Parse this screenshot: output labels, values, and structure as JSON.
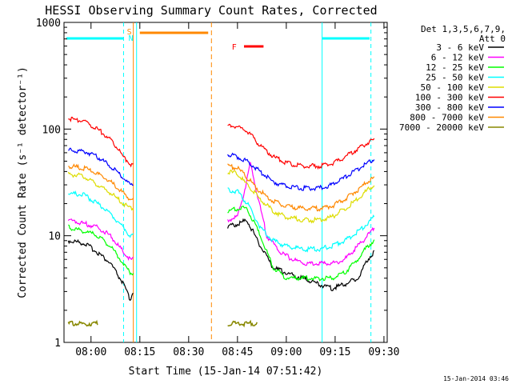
{
  "chart_data": {
    "type": "line",
    "title": "HESSI Observing Summary Count Rates, Corrected",
    "xlabel": "Start Time (15-Jan-14 07:51:42)",
    "ylabel": "Corrected Count Rate (s⁻¹ detector⁻¹)",
    "xlim": [
      "07:51:42",
      "09:31:00"
    ],
    "ylim": [
      1,
      1000
    ],
    "y_scale": "log",
    "x_tick_labels": [
      "08:00",
      "08:15",
      "08:30",
      "08:45",
      "09:00",
      "09:15",
      "09:30"
    ],
    "y_tick_labels": [
      "1",
      "10",
      "100",
      "1000"
    ],
    "legend_header": [
      "Det 1,3,5,6,7,9,",
      "Att 0"
    ],
    "legend_position": "right",
    "series": [
      {
        "name": "3 - 6 keV",
        "color": "#000000",
        "x": [
          "07:53",
          "07:58",
          "08:02",
          "08:06",
          "08:10",
          "08:12",
          "08:13"
        ],
        "y": [
          9,
          8.5,
          7,
          5.5,
          3.5,
          2.5,
          3
        ],
        "x2": [
          "08:42",
          "08:45",
          "08:48",
          "08:52",
          "08:56",
          "09:00",
          "09:05",
          "09:10",
          "09:14",
          "09:18",
          "09:22",
          "09:25",
          "09:27"
        ],
        "y2": [
          12,
          13,
          14,
          8,
          5,
          4.5,
          4,
          3.5,
          3.2,
          3.5,
          4,
          6,
          7
        ]
      },
      {
        "name": "6 - 12 keV",
        "color": "#ff00ff",
        "x": [
          "07:53",
          "07:58",
          "08:02",
          "08:06",
          "08:10",
          "08:12",
          "08:13"
        ],
        "y": [
          14,
          13,
          12,
          10,
          7,
          6,
          6
        ],
        "x2": [
          "08:42",
          "08:45",
          "08:47",
          "08:49",
          "08:51",
          "08:54",
          "08:58",
          "09:02",
          "09:06",
          "09:10",
          "09:14",
          "09:18",
          "09:22",
          "09:25",
          "09:27"
        ],
        "y2": [
          14,
          15,
          25,
          48,
          25,
          10,
          7,
          6,
          5.5,
          5.5,
          5.5,
          6,
          8,
          10,
          12
        ]
      },
      {
        "name": "12 - 25 keV",
        "color": "#00ff00",
        "x": [
          "07:53",
          "07:58",
          "08:02",
          "08:06",
          "08:10",
          "08:12",
          "08:13"
        ],
        "y": [
          12,
          11,
          10,
          8,
          5.5,
          4.5,
          4.5
        ],
        "x2": [
          "08:42",
          "08:45",
          "08:48",
          "08:52",
          "08:56",
          "09:00",
          "09:05",
          "09:10",
          "09:14",
          "09:18",
          "09:22",
          "09:25",
          "09:27"
        ],
        "y2": [
          17,
          18,
          18,
          10,
          5,
          4,
          4,
          4,
          4,
          4.5,
          6,
          8,
          9
        ]
      },
      {
        "name": "25 - 50 keV",
        "color": "#00ffff",
        "x": [
          "07:53",
          "07:58",
          "08:02",
          "08:06",
          "08:10",
          "08:12",
          "08:13"
        ],
        "y": [
          25,
          24,
          20,
          16,
          12,
          10,
          10
        ],
        "x2": [
          "08:42",
          "08:45",
          "08:48",
          "08:52",
          "08:56",
          "09:00",
          "09:05",
          "09:10",
          "09:14",
          "09:18",
          "09:22",
          "09:25",
          "09:27"
        ],
        "y2": [
          27,
          26,
          20,
          12,
          9,
          8,
          7.5,
          7.5,
          8,
          9,
          11,
          13,
          15
        ]
      },
      {
        "name": "50 - 100 keV",
        "color": "#dddd00",
        "x": [
          "07:53",
          "07:58",
          "08:02",
          "08:06",
          "08:10",
          "08:12",
          "08:13"
        ],
        "y": [
          38,
          36,
          30,
          25,
          20,
          18,
          18
        ],
        "x2": [
          "08:42",
          "08:45",
          "08:48",
          "08:52",
          "08:56",
          "09:00",
          "09:05",
          "09:10",
          "09:14",
          "09:18",
          "09:22",
          "09:25",
          "09:27"
        ],
        "y2": [
          40,
          38,
          30,
          22,
          17,
          15,
          14,
          14,
          15,
          18,
          22,
          27,
          30
        ]
      },
      {
        "name": "100 - 300 keV",
        "color": "#ff0000",
        "x": [
          "07:53",
          "07:58",
          "08:02",
          "08:06",
          "08:10",
          "08:12",
          "08:13"
        ],
        "y": [
          125,
          120,
          100,
          80,
          55,
          47,
          47
        ],
        "x2": [
          "08:42",
          "08:45",
          "08:48",
          "08:52",
          "08:56",
          "09:00",
          "09:05",
          "09:10",
          "09:14",
          "09:18",
          "09:22",
          "09:25",
          "09:27"
        ],
        "y2": [
          108,
          105,
          95,
          70,
          55,
          48,
          45,
          45,
          47,
          55,
          65,
          75,
          80
        ]
      },
      {
        "name": "300 - 800 keV",
        "color": "#0000ff",
        "x": [
          "07:53",
          "07:58",
          "08:02",
          "08:06",
          "08:10",
          "08:12",
          "08:13"
        ],
        "y": [
          63,
          62,
          55,
          45,
          35,
          30,
          30
        ],
        "x2": [
          "08:42",
          "08:45",
          "08:48",
          "08:52",
          "08:56",
          "09:00",
          "09:05",
          "09:10",
          "09:14",
          "09:18",
          "09:22",
          "09:25",
          "09:27"
        ],
        "y2": [
          58,
          55,
          50,
          40,
          32,
          29,
          28,
          28,
          30,
          35,
          42,
          48,
          52
        ]
      },
      {
        "name": "800 - 7000 keV",
        "color": "#ff8800",
        "x": [
          "07:53",
          "07:58",
          "08:02",
          "08:06",
          "08:10",
          "08:12",
          "08:13"
        ],
        "y": [
          45,
          43,
          38,
          32,
          25,
          22,
          22
        ],
        "x2": [
          "08:42",
          "08:45",
          "08:48",
          "08:52",
          "08:56",
          "09:00",
          "09:05",
          "09:10",
          "09:14",
          "09:18",
          "09:22",
          "09:25",
          "09:27"
        ],
        "y2": [
          45,
          43,
          35,
          26,
          21,
          19,
          18,
          18,
          19,
          22,
          27,
          32,
          35
        ]
      },
      {
        "name": "7000 - 20000 keV",
        "color": "#888800",
        "x": [
          "07:53",
          "07:58",
          "08:02"
        ],
        "y": [
          1.5,
          1.5,
          1.5
        ],
        "x2": [
          "08:42",
          "08:47",
          "08:51"
        ],
        "y2": [
          1.5,
          1.5,
          1.5
        ]
      }
    ],
    "annotations": [
      {
        "label": "S",
        "color": "#ff8800"
      },
      {
        "label": "N",
        "color": "#00ffff"
      },
      {
        "label": "F",
        "color": "#ff0000"
      }
    ],
    "footer_date": "15-Jan-2014 03:46"
  }
}
